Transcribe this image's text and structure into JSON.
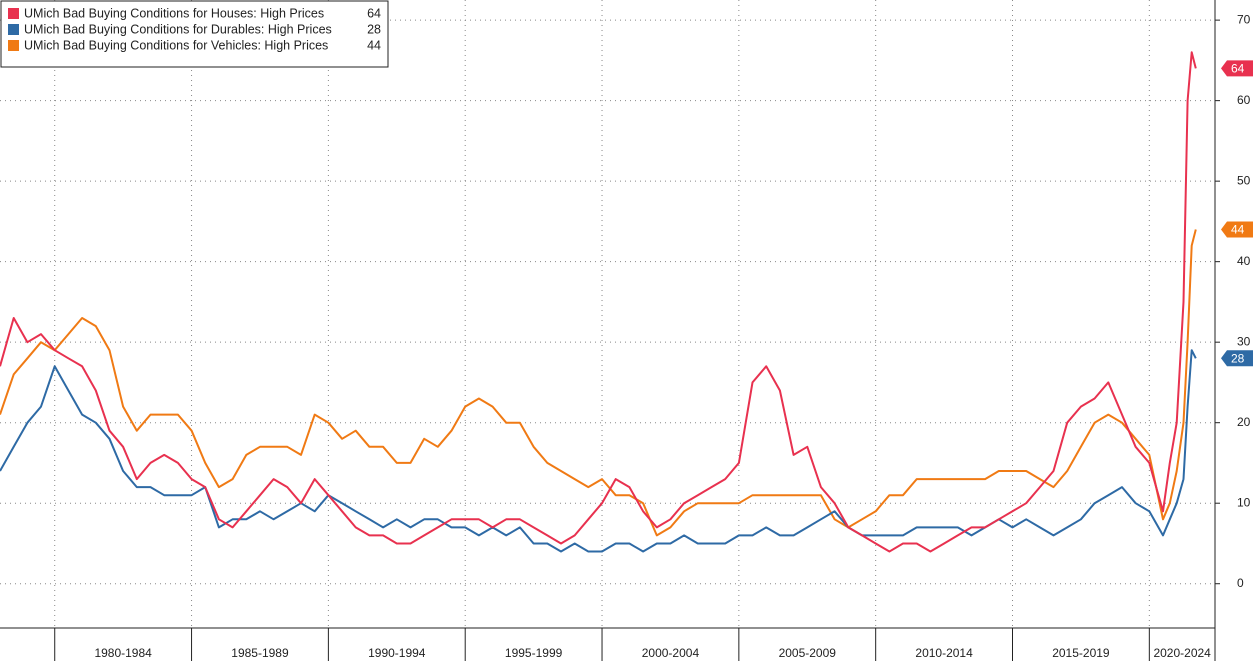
{
  "chart_data": {
    "type": "line",
    "x": [
      1978.0,
      1978.5,
      1979.0,
      1979.5,
      1980.0,
      1980.5,
      1981.0,
      1981.5,
      1982.0,
      1982.5,
      1983.0,
      1983.5,
      1984.0,
      1984.5,
      1985.0,
      1985.5,
      1986.0,
      1986.5,
      1987.0,
      1987.5,
      1988.0,
      1988.5,
      1989.0,
      1989.5,
      1990.0,
      1990.5,
      1991.0,
      1991.5,
      1992.0,
      1992.5,
      1993.0,
      1993.5,
      1994.0,
      1994.5,
      1995.0,
      1995.5,
      1996.0,
      1996.5,
      1997.0,
      1997.5,
      1998.0,
      1998.5,
      1999.0,
      1999.5,
      2000.0,
      2000.5,
      2001.0,
      2001.5,
      2002.0,
      2002.5,
      2003.0,
      2003.5,
      2004.0,
      2004.5,
      2005.0,
      2005.5,
      2006.0,
      2006.5,
      2007.0,
      2007.5,
      2008.0,
      2008.5,
      2009.0,
      2009.5,
      2010.0,
      2010.5,
      2011.0,
      2011.5,
      2012.0,
      2012.5,
      2013.0,
      2013.5,
      2014.0,
      2014.5,
      2015.0,
      2015.5,
      2016.0,
      2016.5,
      2017.0,
      2017.5,
      2018.0,
      2018.5,
      2019.0,
      2019.5,
      2020.0,
      2020.5,
      2020.75,
      2021.0,
      2021.25,
      2021.4,
      2021.55,
      2021.7
    ],
    "series": [
      {
        "name": "UMich Bad Buying Conditions for Houses: High Prices",
        "color": "#e8314f",
        "values": [
          27,
          33,
          30,
          31,
          29,
          28,
          27,
          24,
          19,
          17,
          13,
          15,
          16,
          15,
          13,
          12,
          8,
          7,
          9,
          11,
          13,
          12,
          10,
          13,
          11,
          9,
          7,
          6,
          6,
          5,
          5,
          6,
          7,
          8,
          8,
          8,
          7,
          8,
          8,
          7,
          6,
          5,
          6,
          8,
          10,
          13,
          12,
          9,
          7,
          8,
          10,
          11,
          12,
          13,
          15,
          25,
          27,
          24,
          16,
          17,
          12,
          10,
          7,
          6,
          5,
          4,
          5,
          5,
          4,
          5,
          6,
          7,
          7,
          8,
          9,
          10,
          12,
          14,
          20,
          22,
          23,
          25,
          21,
          17,
          15,
          9,
          15,
          20,
          35,
          60,
          66,
          64
        ]
      },
      {
        "name": "UMich Bad Buying Conditions for Durables: High Prices",
        "color": "#2e6aa5",
        "values": [
          14,
          17,
          20,
          22,
          27,
          24,
          21,
          20,
          18,
          14,
          12,
          12,
          11,
          11,
          11,
          12,
          7,
          8,
          8,
          9,
          8,
          9,
          10,
          9,
          11,
          10,
          9,
          8,
          7,
          8,
          7,
          8,
          8,
          7,
          7,
          6,
          7,
          6,
          7,
          5,
          5,
          4,
          5,
          4,
          4,
          5,
          5,
          4,
          5,
          5,
          6,
          5,
          5,
          5,
          6,
          6,
          7,
          6,
          6,
          7,
          8,
          9,
          7,
          6,
          6,
          6,
          6,
          7,
          7,
          7,
          7,
          6,
          7,
          8,
          7,
          8,
          7,
          6,
          7,
          8,
          10,
          11,
          12,
          10,
          9,
          6,
          8,
          10,
          13,
          22,
          29,
          28
        ]
      },
      {
        "name": "UMich Bad Buying Conditions for Vehicles: High Prices",
        "color": "#f07a14",
        "values": [
          21,
          26,
          28,
          30,
          29,
          31,
          33,
          32,
          29,
          22,
          19,
          21,
          21,
          21,
          19,
          15,
          12,
          13,
          16,
          17,
          17,
          17,
          16,
          21,
          20,
          18,
          19,
          17,
          17,
          15,
          15,
          18,
          17,
          19,
          22,
          23,
          22,
          20,
          20,
          17,
          15,
          14,
          13,
          12,
          13,
          11,
          11,
          10,
          6,
          7,
          9,
          10,
          10,
          10,
          10,
          11,
          11,
          11,
          11,
          11,
          11,
          8,
          7,
          8,
          9,
          11,
          11,
          13,
          13,
          13,
          13,
          13,
          13,
          14,
          14,
          14,
          13,
          12,
          14,
          17,
          20,
          21,
          20,
          18,
          16,
          8,
          10,
          14,
          20,
          30,
          42,
          44
        ]
      }
    ],
    "xlim": [
      1978.0,
      2022.4
    ],
    "ylim": [
      -5.5,
      72.5
    ],
    "yticks": [
      0,
      10,
      20,
      30,
      40,
      50,
      60,
      70
    ],
    "grid": true,
    "legend": "top-left",
    "x_bands": [
      {
        "label": "1980-1984",
        "start": 1980,
        "end": 1985
      },
      {
        "label": "1985-1989",
        "start": 1985,
        "end": 1990
      },
      {
        "label": "1990-1994",
        "start": 1990,
        "end": 1995
      },
      {
        "label": "1995-1999",
        "start": 1995,
        "end": 2000
      },
      {
        "label": "2000-2004",
        "start": 2000,
        "end": 2005
      },
      {
        "label": "2005-2009",
        "start": 2005,
        "end": 2010
      },
      {
        "label": "2010-2014",
        "start": 2010,
        "end": 2015
      },
      {
        "label": "2015-2019",
        "start": 2015,
        "end": 2020
      },
      {
        "label": "2020-2024",
        "start": 2020,
        "end": 2025
      }
    ]
  }
}
